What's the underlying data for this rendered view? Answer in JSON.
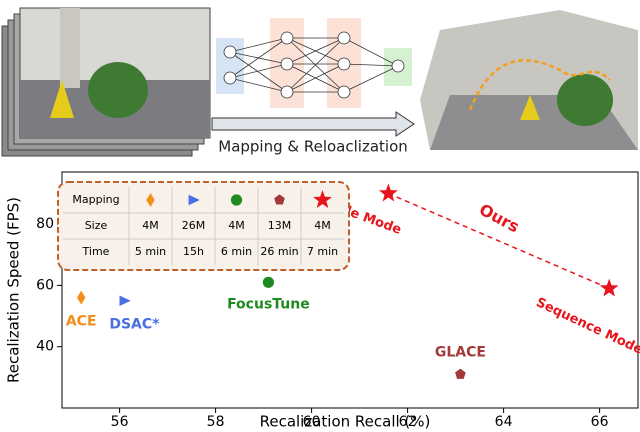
{
  "figure": {
    "pipeline_label": "Mapping & Reloaclization"
  },
  "chart_data": {
    "type": "scatter",
    "xlabel": "Recalization Recall (%)",
    "ylabel": "Recalization Speed (FPS)",
    "xlim": [
      54.8,
      66.8
    ],
    "xticks": [
      56,
      58,
      60,
      62,
      64,
      66
    ],
    "ylim": [
      20,
      97
    ],
    "yticks": [
      40,
      60,
      80
    ],
    "series": [
      {
        "name": "ACE",
        "color": "#f28e1c",
        "marker": "diamond",
        "x": [
          55.2
        ],
        "values": [
          56
        ]
      },
      {
        "name": "DSAC*",
        "color": "#4a6fe3",
        "marker": "triangle",
        "x": [
          56.1
        ],
        "values": [
          55
        ]
      },
      {
        "name": "FocusTune",
        "color": "#1f8a1f",
        "marker": "circle",
        "x": [
          59.1
        ],
        "values": [
          61
        ]
      },
      {
        "name": "GLACE",
        "color": "#a33a3a",
        "marker": "pentagon",
        "x": [
          63.1
        ],
        "values": [
          31
        ]
      },
      {
        "name": "Ours",
        "color": "#e8141c",
        "marker": "star",
        "line": "dashed",
        "x": [
          61.6,
          66.2
        ],
        "values": [
          90,
          59
        ],
        "point_labels": [
          "Single Mode",
          "Sequence Mode"
        ]
      }
    ],
    "table": {
      "row_headers": [
        "Mapping",
        "Size",
        "Time"
      ],
      "rows": [
        [
          "4M",
          "26M",
          "4M",
          "13M",
          "4M"
        ],
        [
          "5 min",
          "15h",
          "6 min",
          "26 min",
          "7 min"
        ]
      ]
    }
  }
}
